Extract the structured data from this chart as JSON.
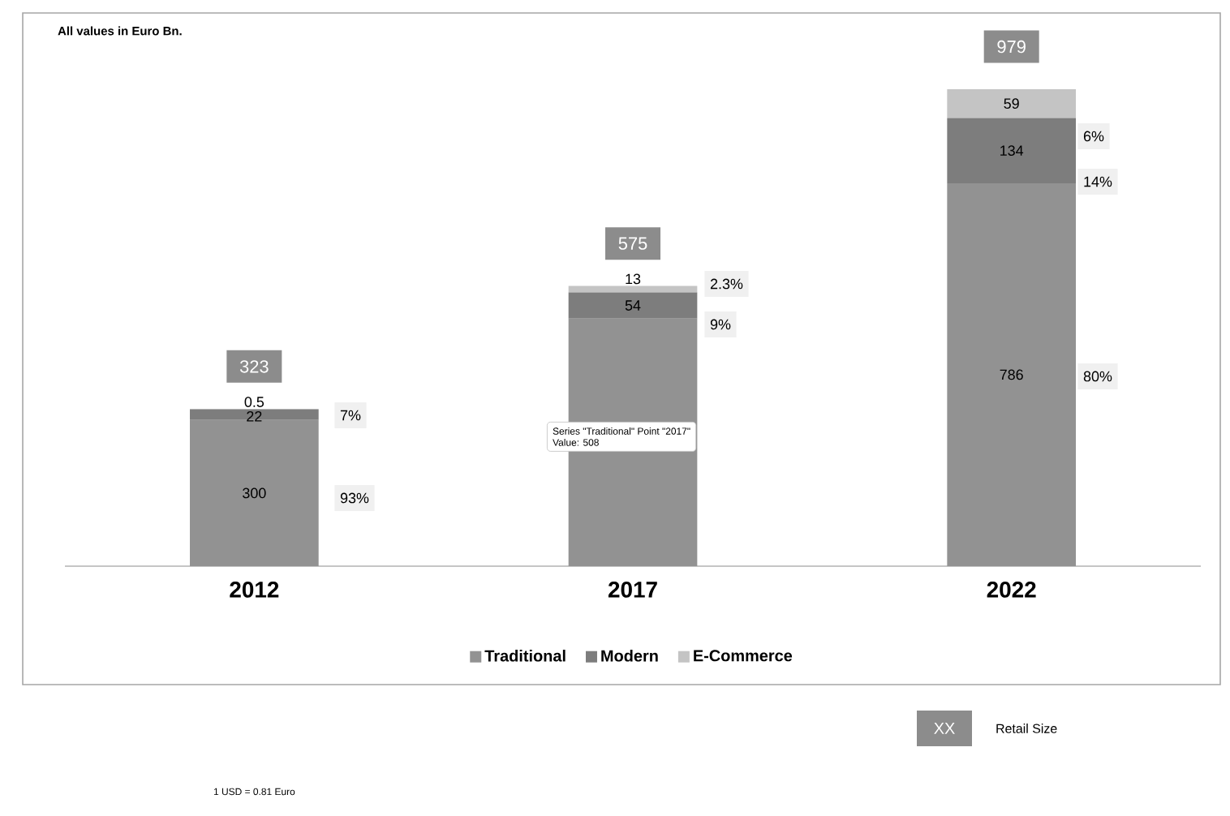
{
  "chart_data": {
    "type": "bar",
    "stacked": true,
    "legend": "bottom",
    "categories": [
      "2012",
      "2017",
      "2022"
    ],
    "series": [
      {
        "name": "Traditional",
        "color": "#929292",
        "values": [
          300,
          508,
          786
        ],
        "value_labels": [
          "300",
          null,
          "786"
        ]
      },
      {
        "name": "Modern",
        "color": "#7d7d7d",
        "values": [
          22,
          54,
          134
        ],
        "value_labels": [
          "22",
          "54",
          "134"
        ]
      },
      {
        "name": "E-Commerce",
        "color": "#c4c4c4",
        "values": [
          0.5,
          13,
          59
        ],
        "value_labels": [
          "0.5",
          "13",
          "59"
        ]
      }
    ],
    "totals": [
      "323",
      "575",
      "979"
    ],
    "annotations": [
      "All values in Euro Bn.",
      "Series \"Traditional\" Point \"2017\"",
      "Value: 508",
      "XX",
      "Retail Size",
      "1 USD = 0.81 Euro",
      "93%",
      "7%",
      "9%",
      "2.3%",
      "80%",
      "14%",
      "6%"
    ]
  }
}
